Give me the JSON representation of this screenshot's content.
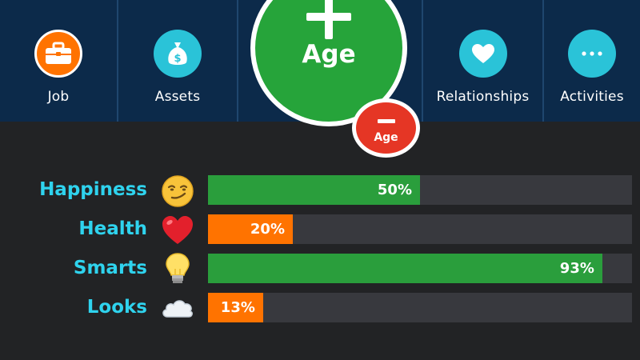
{
  "colors": {
    "nav_bg": "#0c2a4a",
    "background": "#222325",
    "teal": "#2ac3d8",
    "green": "#2a9e3c",
    "orange": "#ff7300",
    "red": "#e53625",
    "label_cyan": "#2fd3ee"
  },
  "nav": {
    "job": {
      "label": "Job",
      "icon": "briefcase-icon"
    },
    "assets": {
      "label": "Assets",
      "icon": "money-bag-icon"
    },
    "relationships": {
      "label": "Relationships",
      "icon": "heart-icon"
    },
    "activities": {
      "label": "Activities",
      "icon": "ellipsis-icon"
    }
  },
  "age_button": {
    "label": "Age",
    "icon": "plus-icon"
  },
  "age_minus_button": {
    "label": "Age",
    "icon": "minus-icon"
  },
  "stats": [
    {
      "label": "Happiness",
      "value": 50,
      "display": "50%",
      "color": "#2a9e3c",
      "icon": "smirk-face-icon"
    },
    {
      "label": "Health",
      "value": 20,
      "display": "20%",
      "color": "#ff7300",
      "icon": "heart-icon"
    },
    {
      "label": "Smarts",
      "value": 93,
      "display": "93%",
      "color": "#2a9e3c",
      "icon": "light-bulb-icon"
    },
    {
      "label": "Looks",
      "value": 13,
      "display": "13%",
      "color": "#ff7300",
      "icon": "cloud-icon"
    }
  ]
}
